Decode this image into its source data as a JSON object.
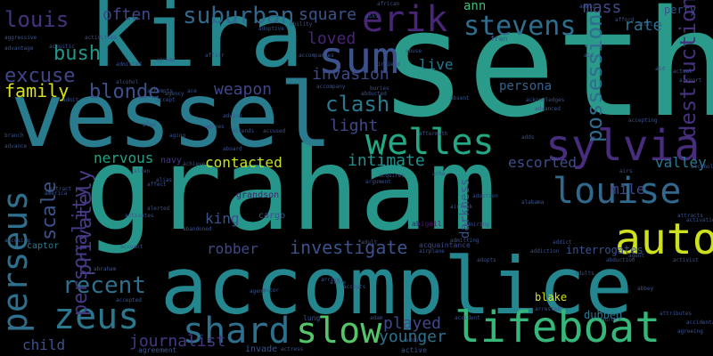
{
  "background": "#000000",
  "words": [
    {
      "text": "seth",
      "color": "#2a9a8a"
    },
    {
      "text": "graham",
      "color": "#26968b"
    },
    {
      "text": "kira",
      "color": "#25858e"
    },
    {
      "text": "vessel",
      "color": "#297b8e"
    },
    {
      "text": "accomplice",
      "color": "#24868e"
    },
    {
      "text": "sum",
      "color": "#3b528b"
    },
    {
      "text": "sylvia",
      "color": "#472d7b"
    },
    {
      "text": "auto",
      "color": "#cde11d"
    },
    {
      "text": "lifeboat",
      "color": "#35b779"
    },
    {
      "text": "shard",
      "color": "#2d708e"
    },
    {
      "text": "slow",
      "color": "#54c568"
    },
    {
      "text": "zeus",
      "color": "#2a788e"
    },
    {
      "text": "louise",
      "color": "#31688e"
    },
    {
      "text": "welles",
      "color": "#22a884"
    },
    {
      "text": "erik",
      "color": "#482576"
    },
    {
      "text": "perseus",
      "color": "#2e6f8e"
    },
    {
      "text": "stevens",
      "color": "#2e6e8e"
    },
    {
      "text": "suburban",
      "color": "#31688e"
    },
    {
      "text": "recent",
      "color": "#2e6f8e"
    },
    {
      "text": "louis",
      "color": "#46337e"
    },
    {
      "text": "excuse",
      "color": "#3f4788"
    },
    {
      "text": "bush",
      "color": "#1f988b"
    },
    {
      "text": "blonde",
      "color": "#3b528b"
    },
    {
      "text": "family",
      "color": "#d8e219"
    },
    {
      "text": "often",
      "color": "#3f4788"
    },
    {
      "text": "square",
      "color": "#3b528b"
    },
    {
      "text": "loved",
      "color": "#482475"
    },
    {
      "text": "invasion",
      "color": "#3e4989"
    },
    {
      "text": "clash",
      "color": "#2a788e"
    },
    {
      "text": "light",
      "color": "#3e4989"
    },
    {
      "text": "weapon",
      "color": "#414487"
    },
    {
      "text": "intimate",
      "color": "#21918c"
    },
    {
      "text": "contacted",
      "color": "#c8e020"
    },
    {
      "text": "nervous",
      "color": "#20a386"
    },
    {
      "text": "scale",
      "color": "#3b528b"
    },
    {
      "text": "privately",
      "color": "#433e85"
    },
    {
      "text": "personality",
      "color": "#443983"
    },
    {
      "text": "king",
      "color": "#3b528b"
    },
    {
      "text": "robber",
      "color": "#3e4989"
    },
    {
      "text": "investigate",
      "color": "#3b528b"
    },
    {
      "text": "played",
      "color": "#3e4989"
    },
    {
      "text": "younger",
      "color": "#2c728e"
    },
    {
      "text": "journalist",
      "color": "#453781"
    },
    {
      "text": "child",
      "color": "#3b528b"
    },
    {
      "text": "ann",
      "color": "#3fbc73"
    },
    {
      "text": "mass",
      "color": "#3e4989"
    },
    {
      "text": "rate",
      "color": "#2d708e"
    },
    {
      "text": "live",
      "color": "#2a788e"
    },
    {
      "text": "persona",
      "color": "#33638d"
    },
    {
      "text": "possession",
      "color": "#2f6c8e"
    },
    {
      "text": "destruction",
      "color": "#46307e"
    },
    {
      "text": "escorted",
      "color": "#3d4e8a"
    },
    {
      "text": "valley",
      "color": "#2a788e"
    },
    {
      "text": "mile",
      "color": "#3e4989"
    },
    {
      "text": "blake",
      "color": "#d5e21a"
    },
    {
      "text": "dubbed",
      "color": "#2a788e"
    },
    {
      "text": "darkness",
      "color": "#39568c"
    },
    {
      "text": "grandson",
      "color": "#481f70"
    },
    {
      "text": "cargo",
      "color": "#3b528b"
    },
    {
      "text": "perry",
      "color": "#3b528b"
    },
    {
      "text": "interrogates",
      "color": "#3b528b"
    },
    {
      "text": "abigail",
      "color": "#48186a"
    },
    {
      "text": "acquaintance",
      "color": "#3e4989"
    },
    {
      "text": "navy",
      "color": "#453781"
    },
    {
      "text": "captor",
      "color": "#2a788e"
    },
    {
      "text": "accepts",
      "color": "#3b528b"
    },
    {
      "text": "activist",
      "color": "#3b528b"
    },
    {
      "text": "addiction",
      "color": "#3b528b"
    },
    {
      "text": "accused",
      "color": "#3b528b"
    },
    {
      "text": "aging",
      "color": "#3b528b"
    },
    {
      "text": "airplane",
      "color": "#3b528b"
    },
    {
      "text": "african",
      "color": "#3b528b"
    },
    {
      "text": "acknowledges",
      "color": "#3b528b"
    },
    {
      "text": "buries",
      "color": "#3b528b"
    },
    {
      "text": "actress",
      "color": "#3b528b"
    },
    {
      "text": "invade",
      "color": "#3b528b"
    },
    {
      "text": "agreement",
      "color": "#3b528b"
    },
    {
      "text": "aggressive",
      "color": "#3b528b"
    },
    {
      "text": "lung",
      "color": "#3b528b"
    },
    {
      "text": "active",
      "color": "#3b528b"
    },
    {
      "text": "accidentally",
      "color": "#3b528b"
    },
    {
      "text": "airport",
      "color": "#3b528b"
    },
    {
      "text": "aftermath",
      "color": "#3b528b"
    },
    {
      "text": "affair",
      "color": "#3b528b"
    },
    {
      "text": "abbey",
      "color": "#3b528b"
    },
    {
      "text": "accident",
      "color": "#3b528b"
    },
    {
      "text": "adds",
      "color": "#3b528b"
    },
    {
      "text": "attracts",
      "color": "#3b528b"
    },
    {
      "text": "abuse",
      "color": "#3b528b"
    },
    {
      "text": "fran",
      "color": "#3b528b"
    },
    {
      "text": "branch",
      "color": "#3b528b"
    },
    {
      "text": "activities",
      "color": "#3b528b"
    },
    {
      "text": "abandoned",
      "color": "#3b528b"
    },
    {
      "text": "accept",
      "color": "#3b528b"
    },
    {
      "text": "adoptive",
      "color": "#3b528b"
    },
    {
      "text": "abduction",
      "color": "#3b528b"
    },
    {
      "text": "agent",
      "color": "#3b528b"
    },
    {
      "text": "adults",
      "color": "#3b528b"
    },
    {
      "text": "aid",
      "color": "#3b528b"
    },
    {
      "text": "alex",
      "color": "#3b528b"
    },
    {
      "text": "actual",
      "color": "#3b528b"
    },
    {
      "text": "absent",
      "color": "#3b528b"
    },
    {
      "text": "acquires",
      "color": "#3b528b"
    },
    {
      "text": "adult",
      "color": "#3b528b"
    },
    {
      "text": "adam",
      "color": "#3b528b"
    },
    {
      "text": "ability",
      "color": "#3b528b"
    },
    {
      "text": "arrive",
      "color": "#3b528b"
    },
    {
      "text": "admitting",
      "color": "#3b528b"
    },
    {
      "text": "activates",
      "color": "#3b528b"
    },
    {
      "text": "activation",
      "color": "#3b528b"
    },
    {
      "text": "advance",
      "color": "#3b528b"
    },
    {
      "text": "attends",
      "color": "#3b528b"
    },
    {
      "text": "ace",
      "color": "#3b528b"
    },
    {
      "text": "account",
      "color": "#3b528b"
    },
    {
      "text": "accusing",
      "color": "#3b528b"
    },
    {
      "text": "accepted",
      "color": "#3b528b"
    },
    {
      "text": "accompanies",
      "color": "#3b528b"
    },
    {
      "text": "advantage",
      "color": "#3b528b"
    },
    {
      "text": "airs",
      "color": "#3b528b"
    },
    {
      "text": "aboard",
      "color": "#3b528b"
    },
    {
      "text": "afford",
      "color": "#3b528b"
    },
    {
      "text": "agreed",
      "color": "#3b528b"
    },
    {
      "text": "attempts",
      "color": "#3b528b"
    },
    {
      "text": "advanced",
      "color": "#3b528b"
    },
    {
      "text": "accepting",
      "color": "#3b528b"
    },
    {
      "text": "agreeing",
      "color": "#3b528b"
    },
    {
      "text": "addict",
      "color": "#3b528b"
    },
    {
      "text": "adopt",
      "color": "#3b528b"
    },
    {
      "text": "alien",
      "color": "#3b528b"
    },
    {
      "text": "alias",
      "color": "#3b528b"
    },
    {
      "text": "affect",
      "color": "#3b528b"
    },
    {
      "text": "admit",
      "color": "#3b528b"
    },
    {
      "text": "arrested",
      "color": "#3b528b"
    },
    {
      "text": "admitted",
      "color": "#3b528b"
    },
    {
      "text": "achieve",
      "color": "#3b528b"
    },
    {
      "text": "abducted",
      "color": "#3b528b"
    },
    {
      "text": "agency",
      "color": "#3b528b"
    },
    {
      "text": "award",
      "color": "#3b528b"
    },
    {
      "text": "actor",
      "color": "#3b528b"
    },
    {
      "text": "attic",
      "color": "#3b528b"
    },
    {
      "text": "asks",
      "color": "#3b528b"
    },
    {
      "text": "ache",
      "color": "#3b528b"
    },
    {
      "text": "alabama",
      "color": "#3b528b"
    },
    {
      "text": "adopts",
      "color": "#3b528b"
    },
    {
      "text": "abraham",
      "color": "#3b528b"
    },
    {
      "text": "acoustic",
      "color": "#3b528b"
    },
    {
      "text": "alcohol",
      "color": "#3b528b"
    },
    {
      "text": "alcoholic",
      "color": "#3b528b"
    },
    {
      "text": "admiring",
      "color": "#3b528b"
    },
    {
      "text": "attributes",
      "color": "#3b528b"
    },
    {
      "text": "alerted",
      "color": "#3b528b"
    },
    {
      "text": "agrees",
      "color": "#3b528b"
    },
    {
      "text": "attract",
      "color": "#3b528b"
    },
    {
      "text": "accompany",
      "color": "#3b528b"
    },
    {
      "text": "argument",
      "color": "#3b528b"
    },
    {
      "text": "aurora",
      "color": "#3b528b"
    },
    {
      "text": "airfield",
      "color": "#3b528b"
    },
    {
      "text": "airlock",
      "color": "#3b528b"
    },
    {
      "text": "america",
      "color": "#3b528b"
    },
    {
      "text": "adoption",
      "color": "#3b528b"
    },
    {
      "text": "advice",
      "color": "#3b528b"
    },
    {
      "text": "alone",
      "color": "#3b528b"
    },
    {
      "text": "aid",
      "color": "#3b528b"
    },
    {
      "text": "agent",
      "color": "#3b528b"
    }
  ]
}
